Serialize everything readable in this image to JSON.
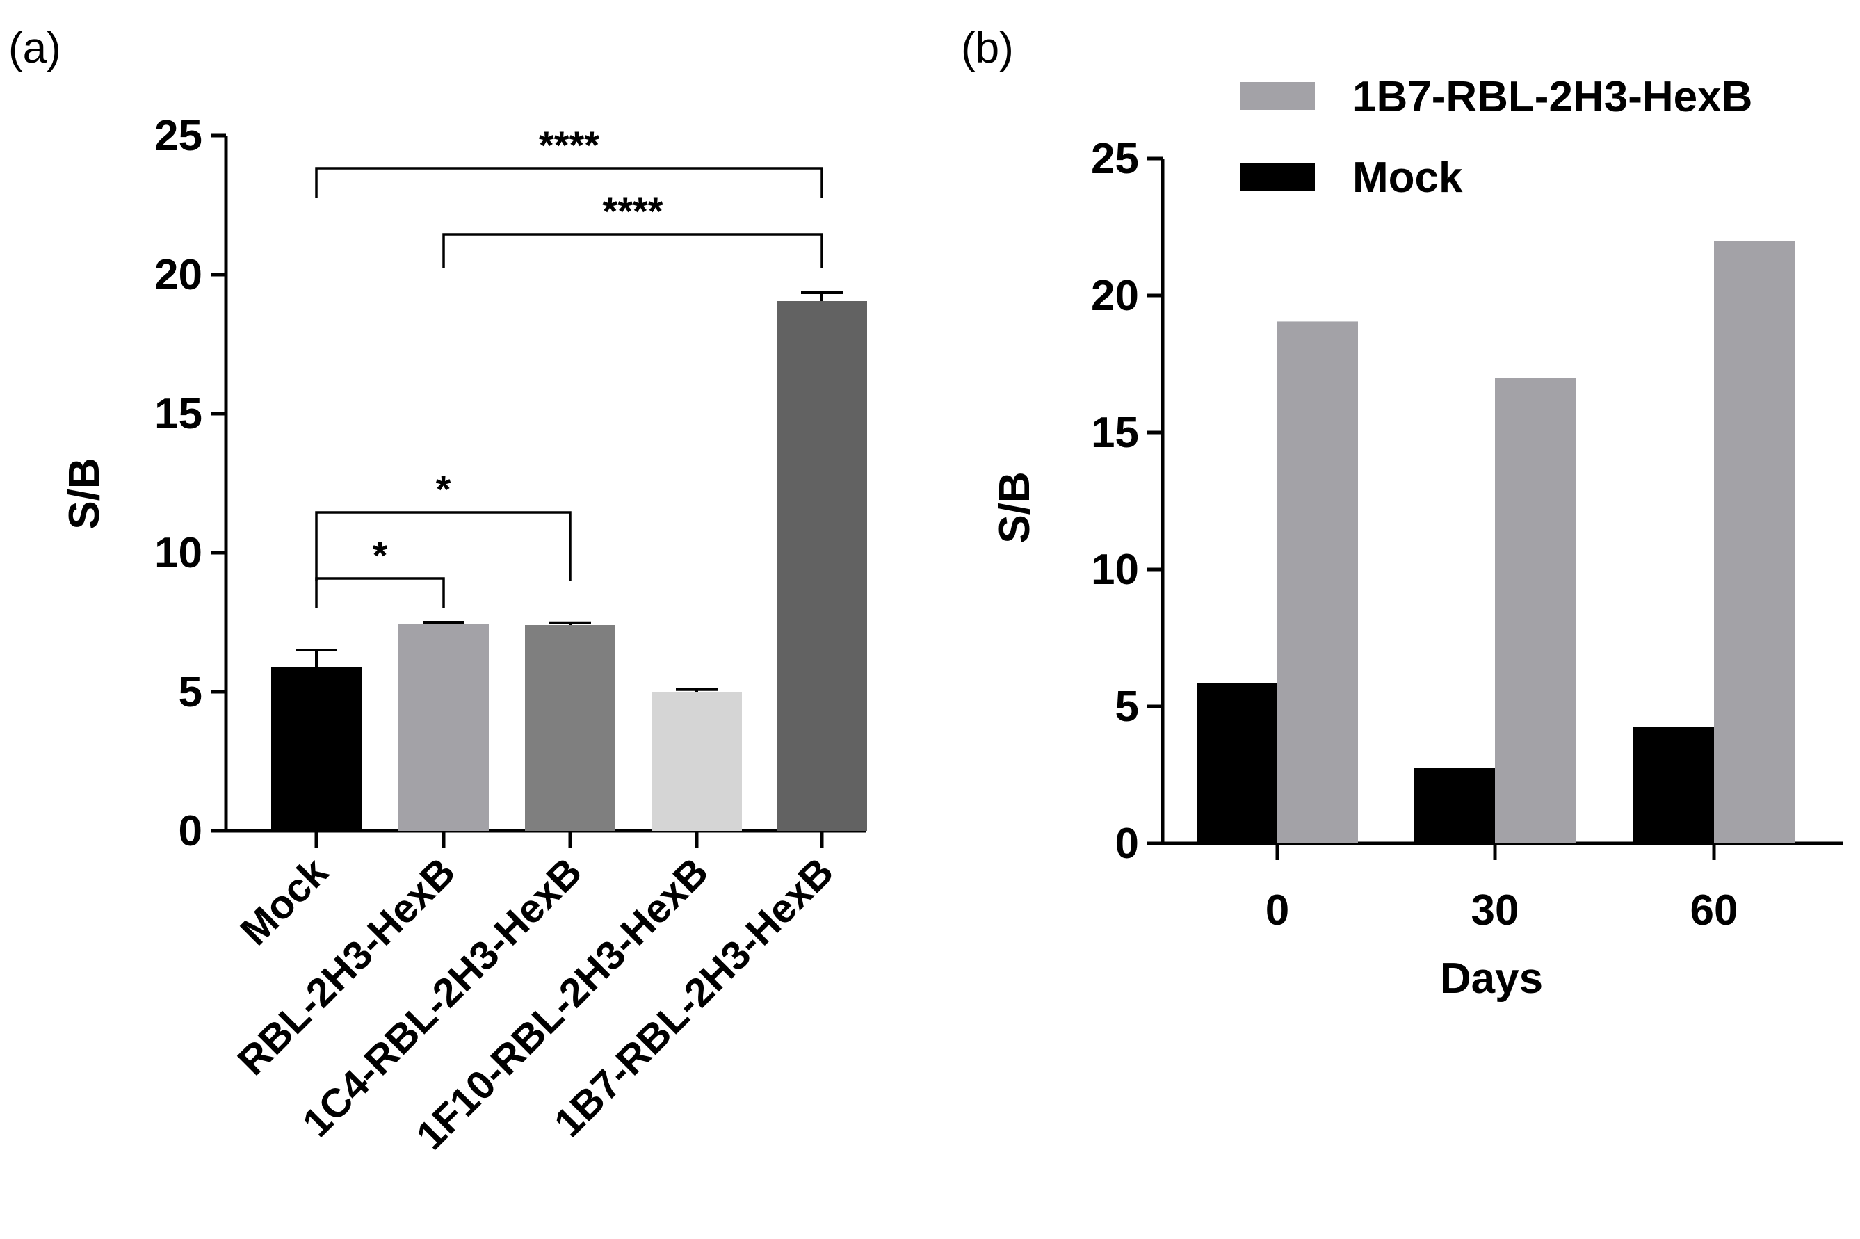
{
  "chart_data": [
    {
      "panel": "(a)",
      "type": "bar",
      "title": "",
      "xlabel": "",
      "ylabel": "S/B",
      "ylim": [
        0,
        25
      ],
      "yticks": [
        "0",
        "5",
        "10",
        "15",
        "20",
        "25"
      ],
      "categories": [
        "Mock",
        "RBL-2H3-HexB",
        "1C4-RBL-2H3-HexB",
        "1F10-RBL-2H3-HexB",
        "1B7-RBL-2H3-HexB"
      ],
      "values": [
        5.9,
        7.45,
        7.4,
        5.0,
        19.05
      ],
      "errors": [
        0.6,
        0.05,
        0.08,
        0.08,
        0.3
      ],
      "colors": [
        "#000000",
        "#a3a2a7",
        "#7f7f7f",
        "#d5d5d5",
        "#626262"
      ],
      "significance": [
        {
          "from": 0,
          "to": 1,
          "label": "*"
        },
        {
          "from": 0,
          "to": 2,
          "label": "*"
        },
        {
          "from": 1,
          "to": 4,
          "label": "****"
        },
        {
          "from": 0,
          "to": 4,
          "label": "****"
        }
      ]
    },
    {
      "panel": "(b)",
      "type": "bar",
      "title": "",
      "xlabel": "Days",
      "ylabel": "S/B",
      "ylim": [
        0,
        25
      ],
      "yticks": [
        "0",
        "5",
        "10",
        "15",
        "20",
        "25"
      ],
      "categories": [
        "0",
        "30",
        "60"
      ],
      "series": [
        {
          "name": "Mock",
          "color": "#000000",
          "values": [
            5.85,
            2.75,
            4.25
          ]
        },
        {
          "name": "1B7-RBL-2H3-HexB",
          "color": "#a3a2a7",
          "values": [
            19.05,
            17.0,
            22.0
          ]
        }
      ],
      "legend_position": "top-right",
      "legend_order": [
        "1B7-RBL-2H3-HexB",
        "Mock"
      ]
    }
  ]
}
